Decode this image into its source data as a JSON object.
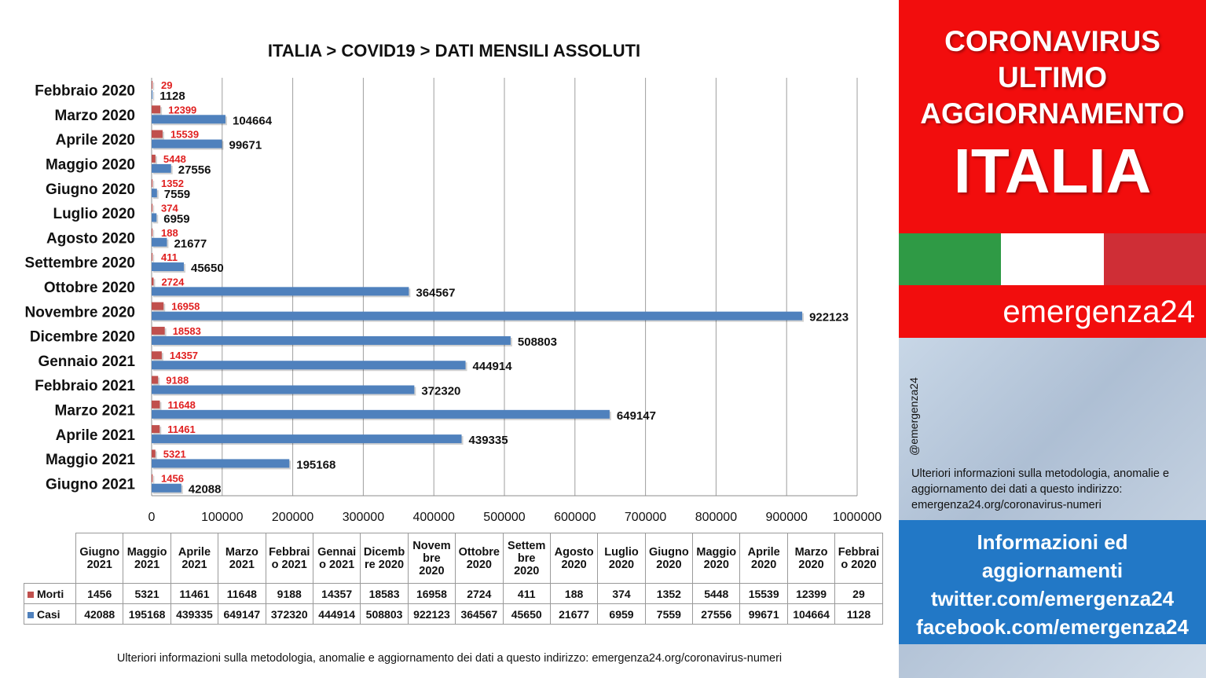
{
  "chart_data": {
    "type": "bar",
    "orientation": "horizontal",
    "title": "ITALIA >  COVID19 > DATI MENSILI  ASSOLUTI",
    "categories": [
      "Febbraio 2020",
      "Marzo 2020",
      "Aprile 2020",
      "Maggio 2020",
      "Giugno 2020",
      "Luglio 2020",
      "Agosto 2020",
      "Settembre 2020",
      "Ottobre 2020",
      "Novembre 2020",
      "Dicembre 2020",
      "Gennaio 2021",
      "Febbraio 2021",
      "Marzo 2021",
      "Aprile 2021",
      "Maggio 2021",
      "Giugno 2021"
    ],
    "series": [
      {
        "name": "Morti",
        "color": "#c0504d",
        "values": [
          29,
          12399,
          15539,
          5448,
          1352,
          374,
          188,
          411,
          2724,
          16958,
          18583,
          14357,
          9188,
          11648,
          11461,
          5321,
          1456
        ]
      },
      {
        "name": "Casi",
        "color": "#4f81bd",
        "values": [
          1128,
          104664,
          99671,
          27556,
          7559,
          6959,
          21677,
          45650,
          364567,
          922123,
          508803,
          444914,
          372320,
          649147,
          439335,
          195168,
          42088
        ]
      }
    ],
    "xlim": [
      0,
      1000000
    ],
    "x_ticks": [
      "0",
      "100000",
      "200000",
      "300000",
      "400000",
      "500000",
      "600000",
      "700000",
      "800000",
      "900000",
      "1000000"
    ],
    "grid": "vertical",
    "data_label_colors": {
      "Morti": "#e02020",
      "Casi": "#111111"
    },
    "table": {
      "columns": [
        "Giugno 2021",
        "Maggio 2021",
        "Aprile 2021",
        "Marzo 2021",
        "Febbraio 2021",
        "Gennaio 2021",
        "Dicembre 2020",
        "Novembre 2020",
        "Ottobre 2020",
        "Settembre 2020",
        "Agosto 2020",
        "Luglio 2020",
        "Giugno 2020",
        "Maggio 2020",
        "Aprile 2020",
        "Marzo 2020",
        "Febbraio 2020"
      ],
      "column_lines": [
        [
          "Giugno",
          "2021"
        ],
        [
          "Maggio",
          "2021"
        ],
        [
          "Aprile",
          "2021"
        ],
        [
          "Marzo",
          "2021"
        ],
        [
          "Febbrai",
          "o 2021"
        ],
        [
          "Gennai",
          "o 2021"
        ],
        [
          "Dicemb",
          "re 2020"
        ],
        [
          "Novem",
          "bre",
          "2020"
        ],
        [
          "Ottobre",
          "2020"
        ],
        [
          "Settem",
          "bre",
          "2020"
        ],
        [
          "Agosto",
          "2020"
        ],
        [
          "Luglio",
          "2020"
        ],
        [
          "Giugno",
          "2020"
        ],
        [
          "Maggio",
          "2020"
        ],
        [
          "Aprile",
          "2020"
        ],
        [
          "Marzo",
          "2020"
        ],
        [
          "Febbrai",
          "o 2020"
        ]
      ],
      "rows": [
        {
          "label": "Morti",
          "values": [
            "1456",
            "5321",
            "11461",
            "11648",
            "9188",
            "14357",
            "18583",
            "16958",
            "2724",
            "411",
            "188",
            "374",
            "1352",
            "5448",
            "15539",
            "12399",
            "29"
          ]
        },
        {
          "label": "Casi",
          "values": [
            "42088",
            "195168",
            "439335",
            "649147",
            "372320",
            "444914",
            "508803",
            "922123",
            "364567",
            "45650",
            "21677",
            "6959",
            "7559",
            "27556",
            "99671",
            "104664",
            "1128"
          ]
        }
      ]
    }
  },
  "footer_note": "Ulteriori informazioni sulla metodologia, anomalie e aggiornamento dei dati a questo indirizzo: emergenza24.org/coronavirus-numeri",
  "sidebar": {
    "headline_lines": [
      "CORONAVIRUS",
      "ULTIMO",
      "AGGIORNAMENTO"
    ],
    "country": "ITALIA",
    "brand": "emergenza24",
    "handle": "@emergenza24",
    "note": "Ulteriori informazioni sulla metodologia, anomalie e aggiornamento dei dati a questo indirizzo: emergenza24.org/coronavirus-numeri",
    "info_lines": [
      "Informazioni ed",
      "aggiornamenti",
      "twitter.com/emergenza24",
      "facebook.com/emergenza24"
    ],
    "colors": {
      "red": "#f20d0d",
      "blue": "#2278c6",
      "flag_green": "#2f9a45",
      "flag_white": "#ffffff",
      "flag_red": "#cf2e36"
    }
  }
}
